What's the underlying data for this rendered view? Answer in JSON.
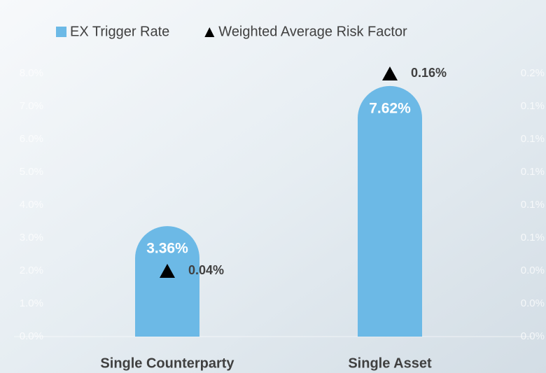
{
  "chart_data": {
    "type": "bar",
    "categories": [
      "Single Counterparty",
      "Single Asset"
    ],
    "series": [
      {
        "name": "EX Trigger Rate",
        "type": "bar",
        "color": "#6cb9e6",
        "values": [
          3.36,
          7.62
        ],
        "value_labels": [
          "3.36%",
          "7.62%"
        ]
      },
      {
        "name": "Weighted Average Risk Factor",
        "type": "scatter",
        "axis": "y2",
        "color": "#000000",
        "values": [
          0.04,
          0.16
        ],
        "value_labels": [
          "0.04%",
          "0.16%"
        ]
      }
    ],
    "ylim": [
      0,
      9
    ],
    "yticks": [
      {
        "value": 0,
        "label": "0.0%"
      },
      {
        "value": 1,
        "label": "1.0%"
      },
      {
        "value": 2,
        "label": "2.0%"
      },
      {
        "value": 3,
        "label": "3.0%"
      },
      {
        "value": 4,
        "label": "4.0%"
      },
      {
        "value": 5,
        "label": "5.0%"
      },
      {
        "value": 6,
        "label": "6.0%"
      },
      {
        "value": 7,
        "label": "7.0%"
      },
      {
        "value": 8,
        "label": "8.0%"
      }
    ],
    "y2lim": [
      0,
      0.18
    ],
    "y2ticks": [
      {
        "value": 0,
        "label": "0.0%"
      },
      {
        "value": 0.02,
        "label": "0.0%"
      },
      {
        "value": 0.04,
        "label": "0.0%"
      },
      {
        "value": 0.06,
        "label": "0.1%"
      },
      {
        "value": 0.08,
        "label": "0.1%"
      },
      {
        "value": 0.1,
        "label": "0.1%"
      },
      {
        "value": 0.12,
        "label": "0.1%"
      },
      {
        "value": 0.14,
        "label": "0.1%"
      },
      {
        "value": 0.16,
        "label": "0.2%"
      }
    ]
  }
}
